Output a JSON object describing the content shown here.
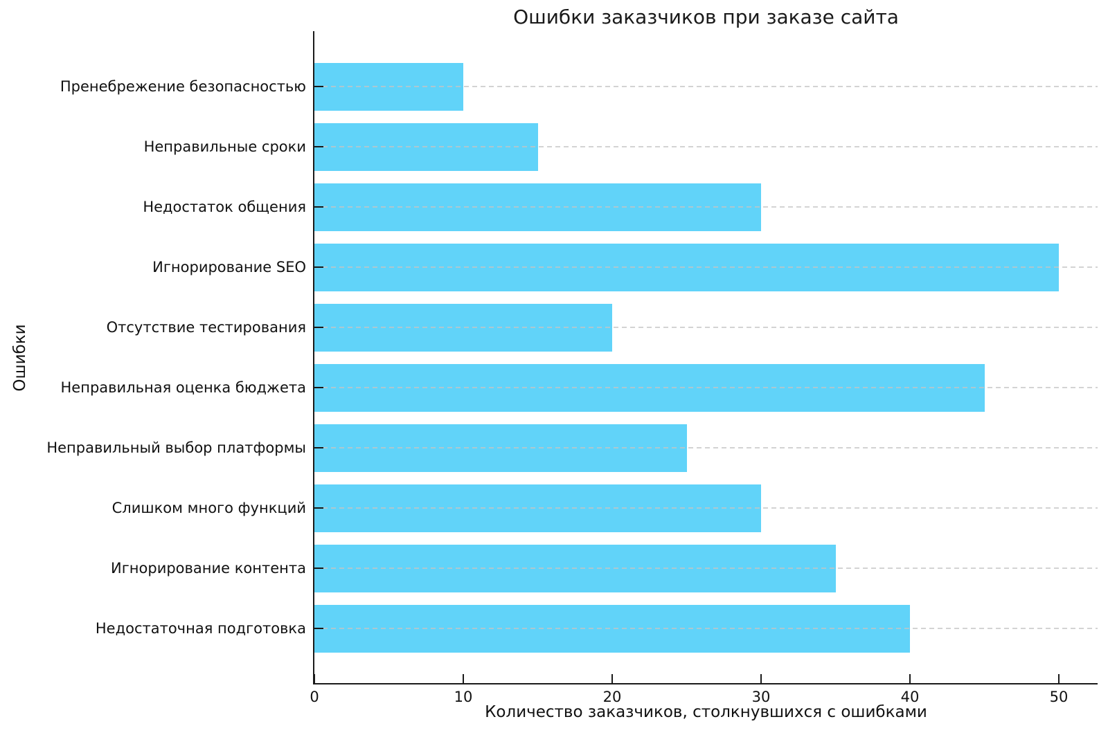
{
  "chart_data": {
    "type": "bar",
    "orientation": "horizontal",
    "title": "Ошибки заказчиков при заказе сайта",
    "xlabel": "Количество заказчиков, столкнувшихся с ошибками",
    "ylabel": "Ошибки",
    "categories": [
      "Пренебрежение безопасностью",
      "Неправильные сроки",
      "Недостаток общения",
      "Игнорирование SEO",
      "Отсутствие тестирования",
      "Неправильная оценка бюджета",
      "Неправильный выбор платформы",
      "Слишком много функций",
      "Игнорирование контента",
      "Недостаточная подготовка"
    ],
    "values": [
      10,
      15,
      30,
      50,
      20,
      45,
      25,
      30,
      35,
      40
    ],
    "xticks": [
      0,
      10,
      20,
      30,
      40,
      50
    ],
    "xlim": [
      0,
      52.6
    ],
    "grid": {
      "axis": "y",
      "style": "dashed",
      "color": "#c4c4c4"
    },
    "legend": "none",
    "bar_color": "#61D3F9",
    "axis_color": "#1a1a1a",
    "background_color": "#ffffff"
  }
}
